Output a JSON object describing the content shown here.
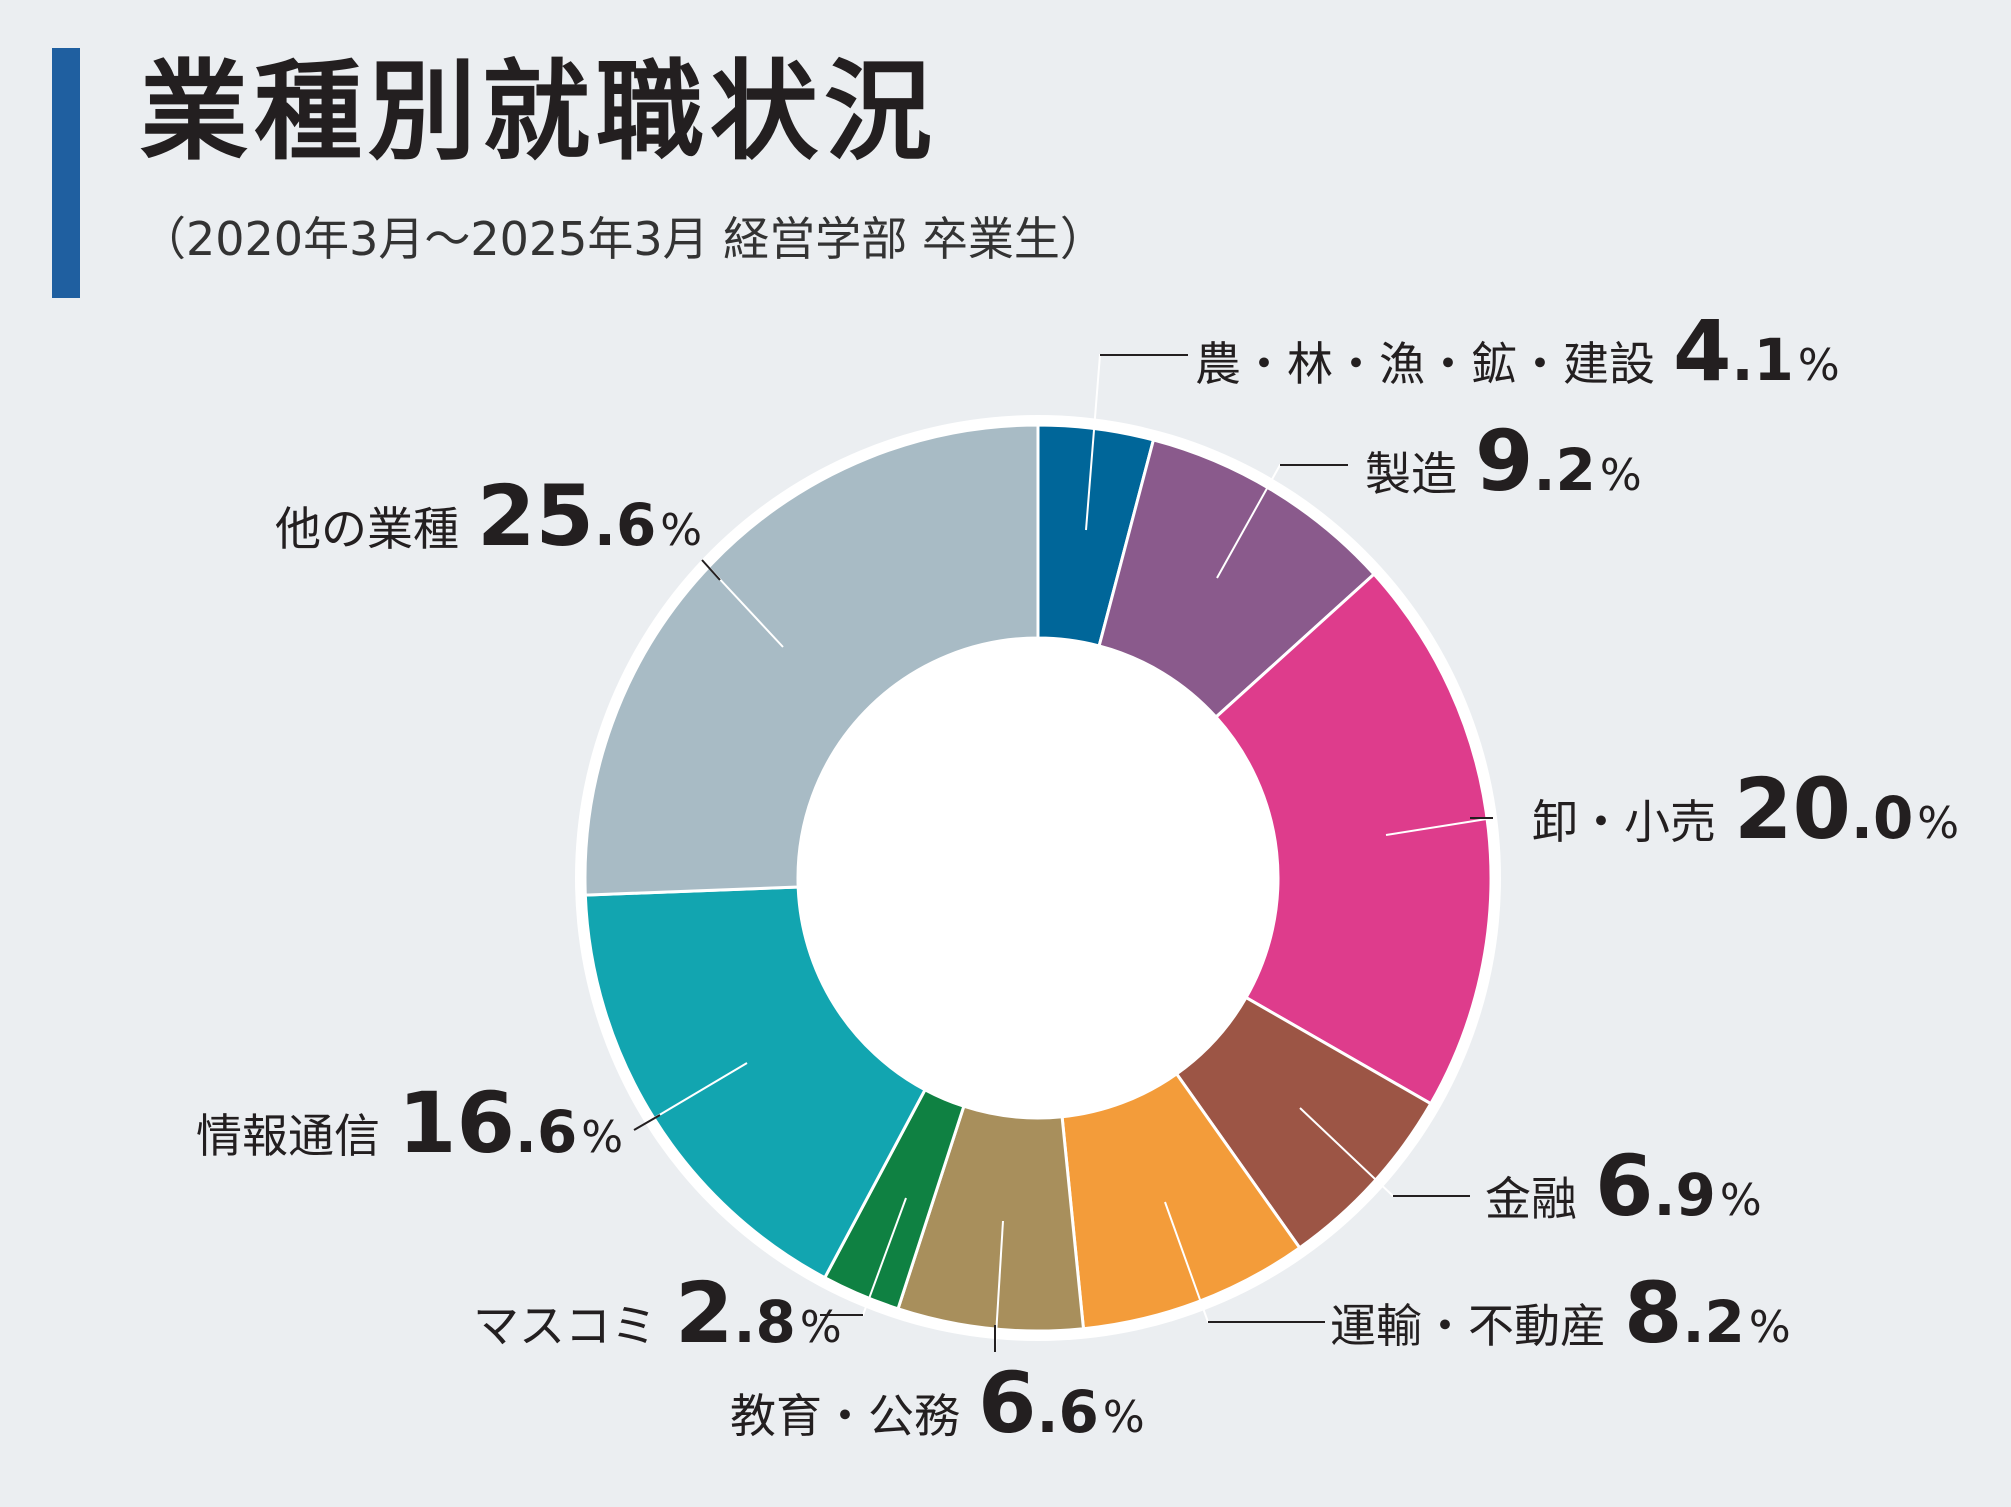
{
  "title": "業種別就職状況",
  "subtitle": "（2020年3月～2025年3月 経営学部 卒業生）",
  "chart_data": {
    "type": "pie",
    "categories": [
      "農・林・漁・鉱・建設",
      "製造",
      "卸・小売",
      "金融",
      "運輸・不動産",
      "教育・公務",
      "マスコミ",
      "情報通信",
      "他の業種"
    ],
    "values": [
      4.1,
      9.2,
      20.0,
      6.9,
      8.2,
      6.6,
      2.8,
      16.6,
      25.6
    ],
    "labels": [
      {
        "name": "農・林・漁・鉱・建設",
        "int": "4",
        "dec": ".1",
        "pct": "%"
      },
      {
        "name": "製造",
        "int": "9",
        "dec": ".2",
        "pct": "%"
      },
      {
        "name": "卸・小売",
        "int": "20",
        "dec": ".0",
        "pct": "%"
      },
      {
        "name": "金融",
        "int": "6",
        "dec": ".9",
        "pct": "%"
      },
      {
        "name": "運輸・不動産",
        "int": "8",
        "dec": ".2",
        "pct": "%"
      },
      {
        "name": "教育・公務",
        "int": "6",
        "dec": ".6",
        "pct": "%"
      },
      {
        "name": "マスコミ",
        "int": "2",
        "dec": ".8",
        "pct": "%"
      },
      {
        "name": "情報通信",
        "int": "16",
        "dec": ".6",
        "pct": "%"
      },
      {
        "name": "他の業種",
        "int": "25",
        "dec": ".6",
        "pct": "%"
      }
    ],
    "colors": [
      "#006699",
      "#8a5a8c",
      "#de3c8c",
      "#9c5545",
      "#f39c3a",
      "#a88f5c",
      "#0f8142",
      "#12a5b0",
      "#a8bbc5"
    ],
    "donut": true
  }
}
